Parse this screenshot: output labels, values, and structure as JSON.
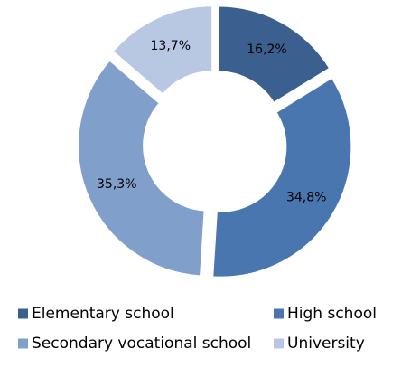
{
  "chart_data": {
    "type": "donut",
    "categories": [
      "Elementary school",
      "High school",
      "Secondary vocational school",
      "University"
    ],
    "values": [
      16.2,
      34.8,
      35.3,
      13.7
    ],
    "value_labels": [
      "16,2%",
      "34,8%",
      "35,3%",
      "13,7%"
    ],
    "colors": [
      "#3b5f8e",
      "#4a76b0",
      "#819fcb",
      "#b8c8e2"
    ],
    "legend": "bottom"
  }
}
